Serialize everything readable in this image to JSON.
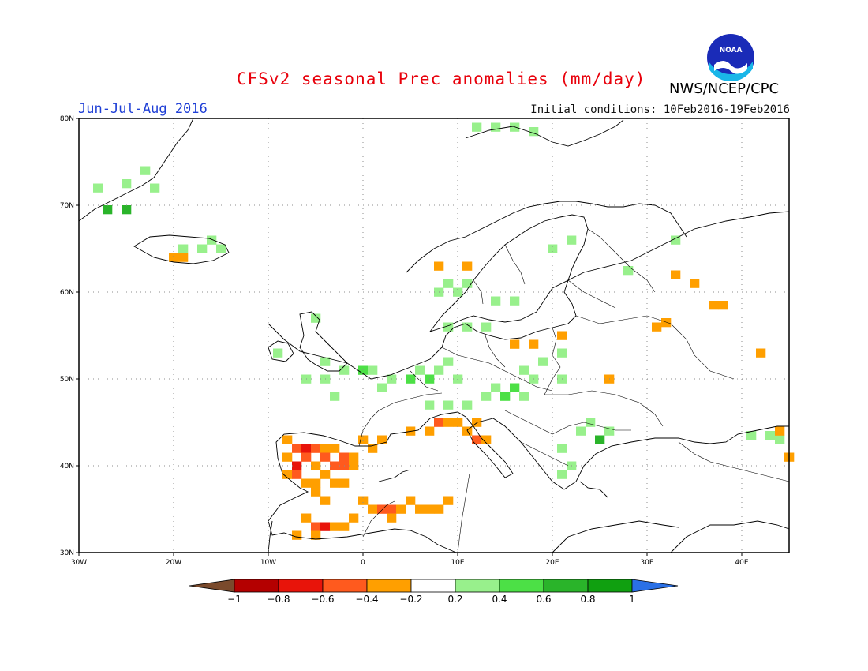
{
  "header": {
    "title": "CFSv2 seasonal Prec anomalies (mm/day)",
    "period": "Jun-Jul-Aug 2016",
    "initial_conditions": "Initial conditions: 10Feb2016-19Feb2016",
    "agency": "NWS/NCEP/CPC",
    "logo_text": "NOAA"
  },
  "colors": {
    "title": "#e8000b",
    "period": "#1f3fd6",
    "frame": "#000000",
    "grid": "#8c8c8c"
  },
  "map": {
    "projection": "lat-lon",
    "lon_range": [
      -30,
      45
    ],
    "lat_range": [
      30,
      80
    ],
    "lon_ticks": [
      {
        "v": -30,
        "label": "30W"
      },
      {
        "v": -20,
        "label": "20W"
      },
      {
        "v": -10,
        "label": "10W"
      },
      {
        "v": 0,
        "label": "0"
      },
      {
        "v": 10,
        "label": "10E"
      },
      {
        "v": 20,
        "label": "20E"
      },
      {
        "v": 30,
        "label": "30E"
      },
      {
        "v": 40,
        "label": "40E"
      }
    ],
    "lat_ticks": [
      {
        "v": 30,
        "label": "30N"
      },
      {
        "v": 40,
        "label": "40N"
      },
      {
        "v": 50,
        "label": "50N"
      },
      {
        "v": 60,
        "label": "60N"
      },
      {
        "v": 70,
        "label": "70N"
      },
      {
        "v": 80,
        "label": "80N"
      }
    ],
    "grid": "dotted"
  },
  "legend": {
    "placement": "bottom",
    "labels": [
      "-1",
      "-0.8",
      "-0.6",
      "-0.4",
      "-0.2",
      "0.2",
      "0.4",
      "0.6",
      "0.8",
      "1"
    ],
    "colors": [
      "#7a4a2c",
      "#b40000",
      "#e8140a",
      "#ff5a1e",
      "#ff9f00",
      "#ffffff",
      "#98f08c",
      "#4ce046",
      "#2ab42a",
      "#10a010",
      "#2a70e6"
    ]
  },
  "anomalies": [
    {
      "lon": -27,
      "lat": 69.5,
      "val": 0.6
    },
    {
      "lon": -25,
      "lat": 69.5,
      "val": 0.6
    },
    {
      "lon": -28,
      "lat": 72,
      "val": 0.3
    },
    {
      "lon": -25,
      "lat": 72.5,
      "val": 0.3
    },
    {
      "lon": -23,
      "lat": 74,
      "val": 0.3
    },
    {
      "lon": -22,
      "lat": 72,
      "val": 0.3
    },
    {
      "lon": -19,
      "lat": 65,
      "val": 0.3
    },
    {
      "lon": -17,
      "lat": 65,
      "val": 0.3
    },
    {
      "lon": -16,
      "lat": 66,
      "val": 0.3
    },
    {
      "lon": -15,
      "lat": 65,
      "val": 0.3
    },
    {
      "lon": -20,
      "lat": 64,
      "val": -0.3
    },
    {
      "lon": -19,
      "lat": 64,
      "val": -0.3
    },
    {
      "lon": 12,
      "lat": 79,
      "val": 0.3
    },
    {
      "lon": 14,
      "lat": 79,
      "val": 0.3
    },
    {
      "lon": 16,
      "lat": 79,
      "val": 0.3
    },
    {
      "lon": 18,
      "lat": 78.5,
      "val": 0.3
    },
    {
      "lon": 22,
      "lat": 66,
      "val": 0.3
    },
    {
      "lon": 20,
      "lat": 65,
      "val": 0.3
    },
    {
      "lon": 28,
      "lat": 62.5,
      "val": 0.3
    },
    {
      "lon": 33,
      "lat": 66,
      "val": 0.3
    },
    {
      "lon": 8,
      "lat": 60,
      "val": 0.3
    },
    {
      "lon": 9,
      "lat": 61,
      "val": 0.3
    },
    {
      "lon": 10,
      "lat": 60,
      "val": 0.3
    },
    {
      "lon": 11,
      "lat": 61,
      "val": 0.3
    },
    {
      "lon": 14,
      "lat": 59,
      "val": 0.3
    },
    {
      "lon": 16,
      "lat": 59,
      "val": 0.3
    },
    {
      "lon": 8,
      "lat": 63,
      "val": -0.3
    },
    {
      "lon": 11,
      "lat": 63,
      "val": -0.3
    },
    {
      "lon": 11,
      "lat": 56,
      "val": 0.3
    },
    {
      "lon": 13,
      "lat": 56,
      "val": 0.3
    },
    {
      "lon": 9,
      "lat": 56,
      "val": 0.3
    },
    {
      "lon": 21,
      "lat": 53,
      "val": 0.3
    },
    {
      "lon": 21,
      "lat": 55,
      "val": -0.3
    },
    {
      "lon": 18,
      "lat": 54,
      "val": -0.3
    },
    {
      "lon": 16,
      "lat": 54,
      "val": -0.3
    },
    {
      "lon": -5,
      "lat": 57,
      "val": 0.3
    },
    {
      "lon": -9,
      "lat": 53,
      "val": 0.3
    },
    {
      "lon": -4,
      "lat": 52,
      "val": 0.3
    },
    {
      "lon": -2,
      "lat": 51,
      "val": 0.3
    },
    {
      "lon": 0,
      "lat": 51,
      "val": 0.5
    },
    {
      "lon": 1,
      "lat": 51,
      "val": 0.3
    },
    {
      "lon": -4,
      "lat": 50,
      "val": 0.3
    },
    {
      "lon": -6,
      "lat": 50,
      "val": 0.3
    },
    {
      "lon": 3,
      "lat": 50,
      "val": 0.3
    },
    {
      "lon": 5,
      "lat": 50,
      "val": 0.5
    },
    {
      "lon": 6,
      "lat": 51,
      "val": 0.3
    },
    {
      "lon": 7,
      "lat": 50,
      "val": 0.5
    },
    {
      "lon": 8,
      "lat": 51,
      "val": 0.3
    },
    {
      "lon": 9,
      "lat": 52,
      "val": 0.3
    },
    {
      "lon": 10,
      "lat": 50,
      "val": 0.3
    },
    {
      "lon": -3,
      "lat": 48,
      "val": 0.3
    },
    {
      "lon": 2,
      "lat": 49,
      "val": 0.3
    },
    {
      "lon": 7,
      "lat": 47,
      "val": 0.3
    },
    {
      "lon": 9,
      "lat": 47,
      "val": 0.3
    },
    {
      "lon": 11,
      "lat": 47,
      "val": 0.3
    },
    {
      "lon": 13,
      "lat": 48,
      "val": 0.3
    },
    {
      "lon": 14,
      "lat": 49,
      "val": 0.3
    },
    {
      "lon": 15,
      "lat": 48,
      "val": 0.5
    },
    {
      "lon": 16,
      "lat": 49,
      "val": 0.5
    },
    {
      "lon": 17,
      "lat": 48,
      "val": 0.3
    },
    {
      "lon": 18,
      "lat": 50,
      "val": 0.3
    },
    {
      "lon": 17,
      "lat": 51,
      "val": 0.3
    },
    {
      "lon": 19,
      "lat": 52,
      "val": 0.3
    },
    {
      "lon": 21,
      "lat": 50,
      "val": 0.3
    },
    {
      "lon": 23,
      "lat": 44,
      "val": 0.3
    },
    {
      "lon": 24,
      "lat": 45,
      "val": 0.3
    },
    {
      "lon": 25,
      "lat": 43,
      "val": 0.7
    },
    {
      "lon": 26,
      "lat": 44,
      "val": 0.3
    },
    {
      "lon": 21,
      "lat": 42,
      "val": 0.3
    },
    {
      "lon": 22,
      "lat": 40,
      "val": 0.3
    },
    {
      "lon": 21,
      "lat": 39,
      "val": 0.3
    },
    {
      "lon": 41,
      "lat": 43.5,
      "val": 0.3
    },
    {
      "lon": 43,
      "lat": 43.5,
      "val": 0.3
    },
    {
      "lon": 44,
      "lat": 43,
      "val": 0.3
    },
    {
      "lon": 33,
      "lat": 62,
      "val": -0.3
    },
    {
      "lon": 35,
      "lat": 61,
      "val": -0.3
    },
    {
      "lon": 37,
      "lat": 58.5,
      "val": -0.3
    },
    {
      "lon": 38,
      "lat": 58.5,
      "val": -0.3
    },
    {
      "lon": 31,
      "lat": 56,
      "val": -0.3
    },
    {
      "lon": 32,
      "lat": 56.5,
      "val": -0.3
    },
    {
      "lon": 42,
      "lat": 53,
      "val": -0.3
    },
    {
      "lon": 26,
      "lat": 50,
      "val": -0.3
    },
    {
      "lon": 44,
      "lat": 44,
      "val": -0.3
    },
    {
      "lon": 45,
      "lat": 41,
      "val": -0.3
    },
    {
      "lon": 5,
      "lat": 44,
      "val": -0.3
    },
    {
      "lon": 7,
      "lat": 44,
      "val": -0.3
    },
    {
      "lon": 8,
      "lat": 45,
      "val": -0.5
    },
    {
      "lon": 9,
      "lat": 45,
      "val": -0.3
    },
    {
      "lon": 10,
      "lat": 45,
      "val": -0.3
    },
    {
      "lon": 11,
      "lat": 44,
      "val": -0.3
    },
    {
      "lon": 12,
      "lat": 45,
      "val": -0.3
    },
    {
      "lon": 12,
      "lat": 43,
      "val": -0.5
    },
    {
      "lon": 13,
      "lat": 43,
      "val": -0.3
    },
    {
      "lon": 0,
      "lat": 43,
      "val": -0.3
    },
    {
      "lon": 2,
      "lat": 43,
      "val": -0.3
    },
    {
      "lon": -8,
      "lat": 43,
      "val": -0.3
    },
    {
      "lon": -7,
      "lat": 42,
      "val": -0.5
    },
    {
      "lon": -6,
      "lat": 42,
      "val": -0.7
    },
    {
      "lon": -5,
      "lat": 42,
      "val": -0.5
    },
    {
      "lon": -4,
      "lat": 42,
      "val": -0.3
    },
    {
      "lon": -3,
      "lat": 42,
      "val": -0.3
    },
    {
      "lon": -2,
      "lat": 41,
      "val": -0.5
    },
    {
      "lon": -1,
      "lat": 41,
      "val": -0.3
    },
    {
      "lon": 1,
      "lat": 42,
      "val": -0.3
    },
    {
      "lon": -8,
      "lat": 41,
      "val": -0.3
    },
    {
      "lon": -7,
      "lat": 40,
      "val": -0.7
    },
    {
      "lon": -6,
      "lat": 41,
      "val": -0.5
    },
    {
      "lon": -5,
      "lat": 40,
      "val": -0.3
    },
    {
      "lon": -4,
      "lat": 41,
      "val": -0.5
    },
    {
      "lon": -3,
      "lat": 40,
      "val": -0.5
    },
    {
      "lon": -2,
      "lat": 40,
      "val": -0.5
    },
    {
      "lon": -1,
      "lat": 40,
      "val": -0.3
    },
    {
      "lon": -8,
      "lat": 39,
      "val": -0.3
    },
    {
      "lon": -7,
      "lat": 39,
      "val": -0.5
    },
    {
      "lon": -6,
      "lat": 38,
      "val": -0.3
    },
    {
      "lon": -5,
      "lat": 38,
      "val": -0.3
    },
    {
      "lon": -4,
      "lat": 39,
      "val": -0.3
    },
    {
      "lon": -3,
      "lat": 38,
      "val": -0.3
    },
    {
      "lon": -2,
      "lat": 38,
      "val": -0.3
    },
    {
      "lon": -5,
      "lat": 37,
      "val": -0.3
    },
    {
      "lon": -4,
      "lat": 36,
      "val": -0.3
    },
    {
      "lon": 0,
      "lat": 36,
      "val": -0.3
    },
    {
      "lon": 1,
      "lat": 35,
      "val": -0.3
    },
    {
      "lon": 2,
      "lat": 35,
      "val": -0.5
    },
    {
      "lon": 3,
      "lat": 35,
      "val": -0.5
    },
    {
      "lon": 4,
      "lat": 35,
      "val": -0.3
    },
    {
      "lon": 5,
      "lat": 36,
      "val": -0.3
    },
    {
      "lon": 6,
      "lat": 35,
      "val": -0.3
    },
    {
      "lon": 7,
      "lat": 35,
      "val": -0.3
    },
    {
      "lon": 8,
      "lat": 35,
      "val": -0.3
    },
    {
      "lon": 9,
      "lat": 36,
      "val": -0.3
    },
    {
      "lon": 3,
      "lat": 34,
      "val": -0.3
    },
    {
      "lon": -1,
      "lat": 34,
      "val": -0.3
    },
    {
      "lon": -6,
      "lat": 34,
      "val": -0.3
    },
    {
      "lon": -5,
      "lat": 33,
      "val": -0.5
    },
    {
      "lon": -4,
      "lat": 33,
      "val": -0.7
    },
    {
      "lon": -3,
      "lat": 33,
      "val": -0.3
    },
    {
      "lon": -2,
      "lat": 33,
      "val": -0.3
    },
    {
      "lon": -7,
      "lat": 32,
      "val": -0.3
    },
    {
      "lon": -5,
      "lat": 32,
      "val": -0.3
    }
  ]
}
